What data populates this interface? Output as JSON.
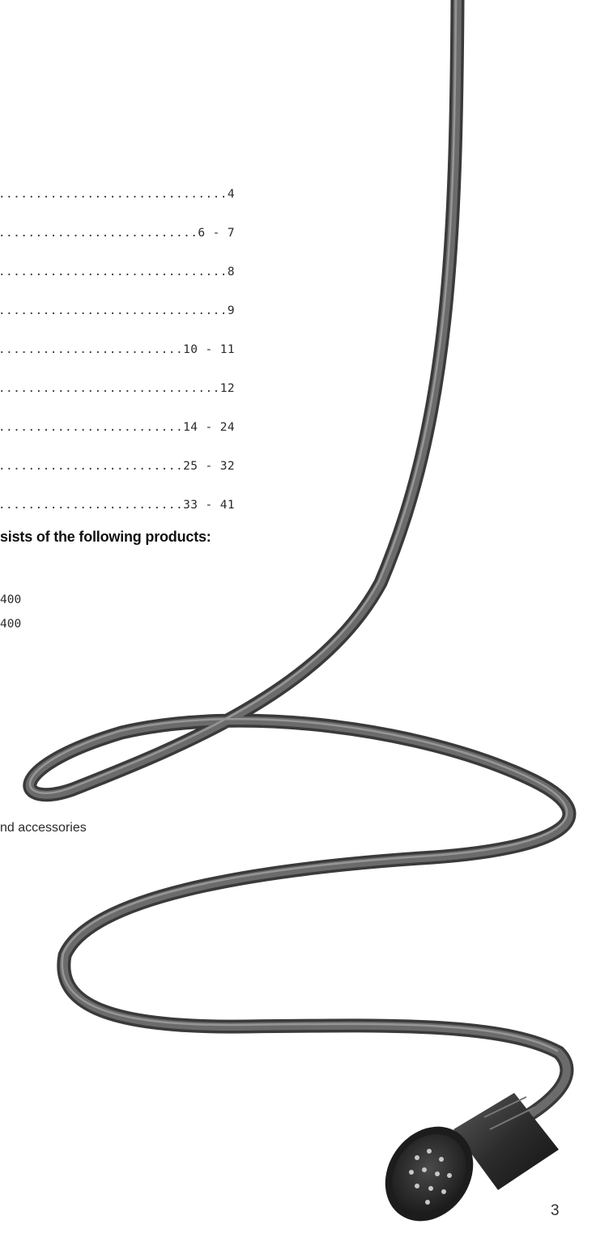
{
  "toc": {
    "entries": [
      {
        "page": "4"
      },
      {
        "page": "6 - 7"
      },
      {
        "page": "8"
      },
      {
        "page": "9"
      },
      {
        "page": "10 - 11"
      },
      {
        "page": "12"
      },
      {
        "page": "14 - 24"
      },
      {
        "page": "25 - 32"
      },
      {
        "page": "33 - 41"
      }
    ]
  },
  "products": {
    "heading": "sists of the following products:",
    "lines": [
      "400",
      "400"
    ],
    "accessories": "nd accessories"
  },
  "footer": {
    "page_number": "3"
  },
  "illustration": {
    "icon": "cable-with-round-connector-icon"
  }
}
